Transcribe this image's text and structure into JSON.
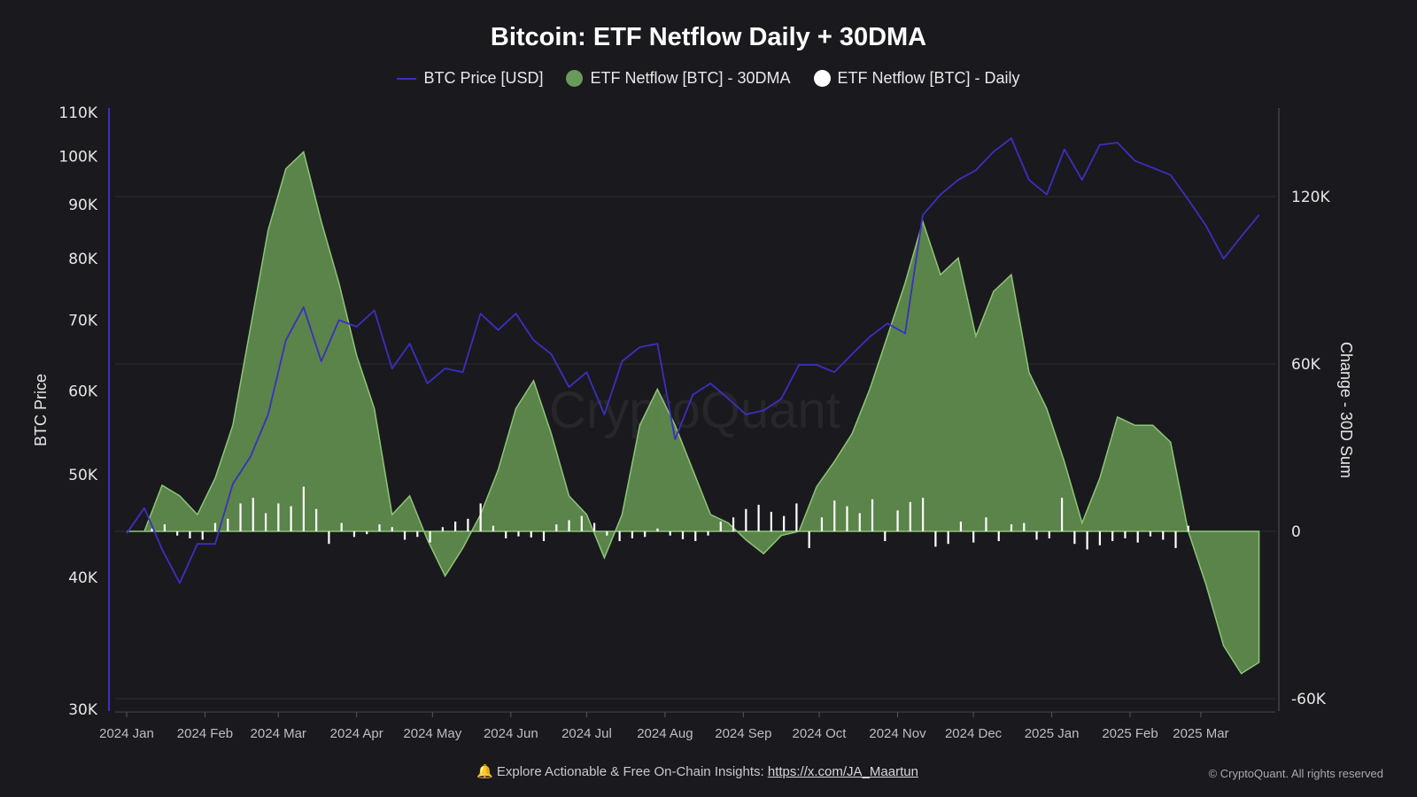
{
  "title": "Bitcoin: ETF Netflow Daily + 30DMA",
  "legend": [
    {
      "label": "BTC Price [USD]",
      "color": "#3b2fc0",
      "marker": "line"
    },
    {
      "label": "ETF Netflow [BTC] - 30DMA",
      "color": "#6a9a5a",
      "marker": "circle"
    },
    {
      "label": "ETF Netflow [BTC] - Daily",
      "color": "#ffffff",
      "marker": "circle"
    }
  ],
  "watermark": "CryptoQuant",
  "footer": {
    "bell_icon": "bell-icon",
    "text": "Explore Actionable & Free On-Chain Insights:",
    "link": "https://x.com/JA_Maartun"
  },
  "copyright": "© CryptoQuant. All rights reserved",
  "chart_data": {
    "type": "line",
    "title": "Bitcoin: ETF Netflow Daily + 30DMA",
    "ylabel_left": "BTC Price",
    "ylabel_right": "Change - 30D Sum",
    "left_axis": {
      "scale": "log",
      "range": [
        30000,
        110000
      ],
      "ticks": [
        30000,
        40000,
        50000,
        60000,
        70000,
        80000,
        90000,
        100000,
        110000
      ],
      "tick_labels": [
        "30K",
        "40K",
        "50K",
        "60K",
        "70K",
        "80K",
        "90K",
        "100K",
        "110K"
      ]
    },
    "right_axis": {
      "scale": "linear",
      "range": [
        -60000,
        150000
      ],
      "ticks": [
        -60000,
        0,
        60000,
        120000
      ],
      "tick_labels": [
        "-60K",
        "0",
        "60K",
        "120K"
      ]
    },
    "x_ticks": [
      {
        "date": "2024-01-01",
        "label": "2024 Jan"
      },
      {
        "date": "2024-02-01",
        "label": "2024 Feb"
      },
      {
        "date": "2024-03-01",
        "label": "2024 Mar"
      },
      {
        "date": "2024-04-01",
        "label": "2024 Apr"
      },
      {
        "date": "2024-05-01",
        "label": "2024 May"
      },
      {
        "date": "2024-06-01",
        "label": "2024 Jun"
      },
      {
        "date": "2024-07-01",
        "label": "2024 Jul"
      },
      {
        "date": "2024-08-01",
        "label": "2024 Aug"
      },
      {
        "date": "2024-09-01",
        "label": "2024 Sep"
      },
      {
        "date": "2024-10-01",
        "label": "2024 Oct"
      },
      {
        "date": "2024-11-01",
        "label": "2024 Nov"
      },
      {
        "date": "2024-12-01",
        "label": "2024 Dec"
      },
      {
        "date": "2025-01-01",
        "label": "2025 Jan"
      },
      {
        "date": "2025-02-01",
        "label": "2025 Feb"
      },
      {
        "date": "2025-03-01",
        "label": "2025 Mar"
      }
    ],
    "x_range": [
      "2023-12-27",
      "2025-04-01"
    ],
    "grid": true,
    "legend_position": "top",
    "series": [
      {
        "name": "BTC Price [USD]",
        "axis": "left",
        "color": "#3b2fc0",
        "start": "2024-01-01",
        "step_days": 7,
        "values": [
          44000,
          46500,
          42500,
          39500,
          43000,
          43000,
          49000,
          52000,
          57000,
          67000,
          72000,
          64000,
          70000,
          69000,
          71500,
          63000,
          66500,
          61000,
          63000,
          62500,
          71000,
          68500,
          71000,
          67000,
          65000,
          60500,
          62500,
          57000,
          64000,
          66000,
          66500,
          54000,
          59500,
          61000,
          59000,
          57000,
          57500,
          59000,
          63500,
          63500,
          62500,
          65000,
          67500,
          69500,
          68000,
          88000,
          92000,
          95000,
          97000,
          101000,
          104000,
          95000,
          92000,
          101500,
          95000,
          102500,
          103000,
          99000,
          97500,
          96000,
          91000,
          86000,
          80000,
          84000,
          88000
        ]
      },
      {
        "name": "ETF Netflow [BTC] - 30DMA",
        "axis": "right",
        "color": "#6a9a5a",
        "start": "2024-01-01",
        "step_days": 7,
        "values": [
          0,
          0,
          16500,
          12700,
          6000,
          19000,
          38000,
          73000,
          108000,
          130000,
          136000,
          111000,
          89000,
          63000,
          44000,
          6000,
          12700,
          -3000,
          -16000,
          -6000,
          6000,
          22000,
          44000,
          54000,
          35000,
          12700,
          6000,
          -9500,
          6000,
          38000,
          51000,
          38000,
          22000,
          6000,
          3000,
          -3000,
          -8000,
          -1500,
          0,
          16000,
          25000,
          35000,
          51000,
          70000,
          89000,
          111000,
          92000,
          98000,
          70000,
          86000,
          92000,
          57000,
          44000,
          25000,
          3000,
          19000,
          41000,
          38000,
          38000,
          32000,
          0,
          -19000,
          -41000,
          -51000,
          -47000
        ]
      },
      {
        "name": "ETF Netflow [BTC] - Daily",
        "axis": "right",
        "color": "#ffffff",
        "type": "bar",
        "start": "2024-01-11",
        "step_days": 5,
        "values": [
          1000,
          2500,
          -1500,
          -2500,
          -3000,
          3000,
          4500,
          10000,
          12000,
          6500,
          10000,
          9000,
          16000,
          8000,
          -4500,
          3000,
          -2000,
          -1000,
          2500,
          1500,
          -3000,
          -2000,
          -4000,
          1500,
          3500,
          4500,
          10000,
          2000,
          -2500,
          -1800,
          -2200,
          -3500,
          2500,
          4000,
          5500,
          3000,
          -1500,
          -3500,
          -2500,
          -2000,
          1000,
          -1500,
          -2800,
          -3500,
          -1500,
          3500,
          5000,
          8000,
          9500,
          7000,
          5500,
          10000,
          -6000,
          5000,
          11000,
          9000,
          6500,
          11500,
          -3500,
          7500,
          10500,
          12000,
          -5500,
          -4500,
          3500,
          -4000,
          5000,
          -3500,
          2500,
          3000,
          -3000,
          -2500,
          12000,
          -4500,
          -6500,
          -5000,
          -3500,
          -2500,
          -4000,
          -1800,
          -3000,
          -6000,
          2000
        ]
      }
    ]
  }
}
